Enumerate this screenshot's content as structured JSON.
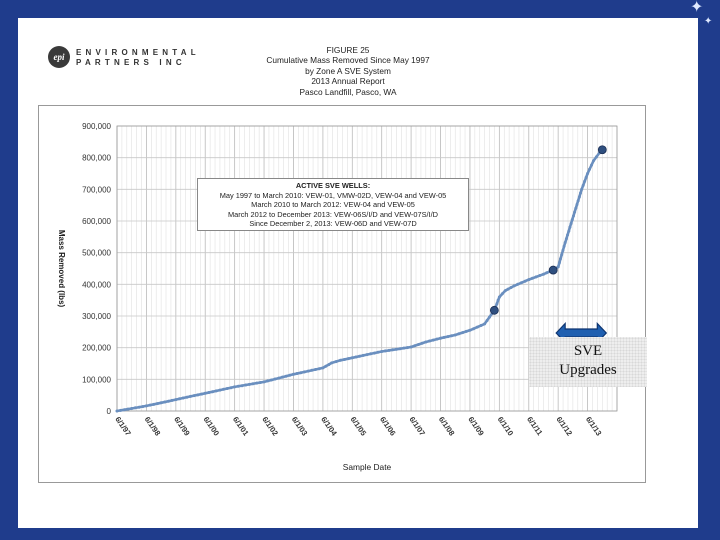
{
  "logo": {
    "mark": "epi",
    "line1": "ENVIRONMENTAL",
    "line2": "PARTNERS INC"
  },
  "figure": {
    "title_lines": [
      "FIGURE 25",
      "Cumulative Mass Removed Since May 1997",
      "by Zone A SVE System",
      "2013 Annual Report",
      "Pasco Landfill, Pasco, WA"
    ]
  },
  "legend_box": {
    "title": "ACTIVE SVE WELLS:",
    "lines": [
      "May 1997 to March 2010: VEW-01, VMW-02D, VEW-04 and VEW-05",
      "March 2010 to March 2012: VEW-04 and VEW-05",
      "March 2012 to December 2013: VEW-06S/I/D and VEW-07S/I/D",
      "Since December 2, 2013: VEW-06D and VEW-07D"
    ]
  },
  "callout": {
    "line1": "SVE",
    "line2": "Upgrades"
  },
  "colors": {
    "series": "#6a8fbf",
    "marker": "#2f4f7f",
    "arrow": "#1f5fb0",
    "frame": "#1f3c8c"
  },
  "chart_data": {
    "type": "line",
    "title": "Cumulative Mass Removed Since May 1997",
    "xlabel": "Sample Date",
    "ylabel": "Mass Removed (lbs)",
    "ylim": [
      0,
      900000
    ],
    "yticks": [
      0,
      100000,
      200000,
      300000,
      400000,
      500000,
      600000,
      700000,
      800000,
      900000
    ],
    "ytick_labels": [
      "0",
      "100,000",
      "200,000",
      "300,000",
      "400,000",
      "500,000",
      "600,000",
      "700,000",
      "800,000",
      "900,000"
    ],
    "xlim": [
      1997.0,
      2014.0
    ],
    "xticks": [
      1997.0,
      1998.0,
      1999.0,
      2000.0,
      2001.0,
      2002.0,
      2003.0,
      2004.0,
      2005.0,
      2006.0,
      2007.0,
      2008.0,
      2009.0,
      2010.0,
      2011.0,
      2012.0,
      2013.0
    ],
    "xtick_labels": [
      "6/1/97",
      "6/1/98",
      "6/1/99",
      "6/1/00",
      "6/1/01",
      "6/1/02",
      "6/1/03",
      "6/1/04",
      "6/1/05",
      "6/1/06",
      "6/1/07",
      "6/1/08",
      "6/1/09",
      "6/1/10",
      "6/1/11",
      "6/1/12",
      "6/1/13"
    ],
    "grid": true,
    "series": [
      {
        "values_x": [
          1997.0,
          1997.5,
          1998.0,
          1998.5,
          1999.0,
          1999.5,
          2000.0,
          2000.5,
          2001.0,
          2001.5,
          2002.0,
          2002.5,
          2003.0,
          2003.5,
          2004.0,
          2004.3,
          2004.6,
          2005.0,
          2005.5,
          2006.0,
          2006.5,
          2007.0,
          2007.5,
          2008.0,
          2008.5,
          2009.0,
          2009.5,
          2009.83,
          2010.0,
          2010.2,
          2010.5,
          2011.0,
          2011.5,
          2011.83,
          2012.0,
          2012.2,
          2012.4,
          2012.6,
          2012.8,
          2013.0,
          2013.2,
          2013.4,
          2013.5
        ],
        "values_y": [
          0,
          8000,
          16000,
          26000,
          36000,
          46000,
          56000,
          66000,
          76000,
          84000,
          92000,
          104000,
          116000,
          126000,
          136000,
          152000,
          160000,
          168000,
          178000,
          188000,
          195000,
          202000,
          218000,
          230000,
          240000,
          255000,
          275000,
          318000,
          360000,
          380000,
          395000,
          415000,
          432000,
          445000,
          455000,
          520000,
          580000,
          640000,
          700000,
          750000,
          790000,
          815000,
          825000
        ]
      }
    ],
    "highlight_points": [
      {
        "x": 2009.83,
        "y": 318000
      },
      {
        "x": 2011.83,
        "y": 445000
      },
      {
        "x": 2013.5,
        "y": 825000
      }
    ],
    "annotations": [
      "SVE Upgrades"
    ]
  }
}
